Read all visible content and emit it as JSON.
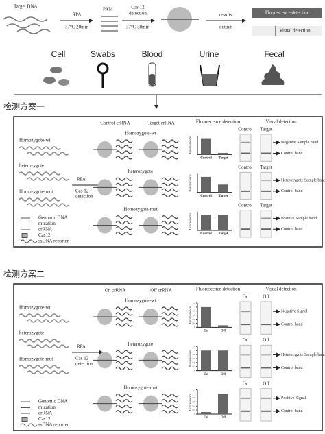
{
  "workflow": {
    "target_dna": "Target DNA",
    "rpa": "RPA",
    "rpa_condition": "37°C 20min",
    "pam": "PAM",
    "cas12": "Cas 12",
    "detection": "detection",
    "cas12_condition": "37°C 30min",
    "results": "results",
    "output": "output",
    "fluorescence": "Fluorescence detection",
    "visual": "Visual detection"
  },
  "samples": [
    "Cell",
    "Swabs",
    "Blood",
    "Urine",
    "Fecal"
  ],
  "schemes": [
    {
      "title": "检测方案一",
      "left_labels": [
        "Homozygote-wt",
        "heterozygote",
        "Homozygote-mut"
      ],
      "rpa": "RPA",
      "cas12": "Cas 12",
      "detection": "detection",
      "legend": [
        "Genomic DNA",
        "mutation",
        "crRNA",
        "Cas12",
        "ssDNA reporter"
      ],
      "probe_headers": [
        "Control crRNA",
        "Target crRNA"
      ],
      "fluorescence_title": "Fluorescence detection",
      "visual_title": "Visual detection",
      "visual_headers": [
        "Control",
        "Target"
      ],
      "ylabel": "fluorescence",
      "ylim": [
        0,
        1.2
      ],
      "rows": [
        {
          "genotype": "Homozygote-wt",
          "categories": [
            "Control",
            "Target"
          ],
          "values": [
            1,
            0.1
          ],
          "bands": [
            "Negative Sample band",
            "Control band"
          ]
        },
        {
          "genotype": "heterozygote",
          "categories": [
            "Control",
            "Target"
          ],
          "values": [
            1,
            0.5
          ],
          "bands": [
            "Heterozygote Sample band",
            "Control band"
          ]
        },
        {
          "genotype": "Homozygote-mut",
          "categories": [
            "Control",
            "Target"
          ],
          "values": [
            1,
            1
          ],
          "bands": [
            "Positive Sample band",
            "Control band"
          ]
        }
      ]
    },
    {
      "title": "检测方案二",
      "left_labels": [
        "Homozygote-wt",
        "heterozygote",
        "Homozygote-mut"
      ],
      "rpa": "RPA",
      "cas12": "Cas 12",
      "detection": "detection",
      "legend": [
        "Genomic DNA",
        "mutation",
        "crRNA",
        "Cas12",
        "ssDNA reporter"
      ],
      "probe_headers": [
        "On crRNA",
        "Off crRNA"
      ],
      "fluorescence_title": "Fluorescence detection",
      "visual_title": "Visual detection",
      "visual_headers": [
        "On",
        "Off"
      ],
      "ylabel": "fluorescence",
      "ylim": [
        0,
        1.2
      ],
      "yticks": [
        0,
        0.2,
        0.4,
        0.6,
        0.8,
        1,
        1.2
      ],
      "rows": [
        {
          "genotype": "Homozygote-wt",
          "categories": [
            "On",
            "Off"
          ],
          "values": [
            1,
            0.1
          ],
          "bands": [
            "Negative Signal",
            "Control band"
          ]
        },
        {
          "genotype": "heterozygote",
          "categories": [
            "On",
            "Off"
          ],
          "values": [
            1,
            1
          ],
          "bands": [
            "Heterozygote Sample band",
            "Control band"
          ]
        },
        {
          "genotype": "Homozygote-mut",
          "categories": [
            "On",
            "Off"
          ],
          "values": [
            0.1,
            1
          ],
          "bands": [
            "Positive Signal",
            "Control band"
          ]
        }
      ]
    }
  ]
}
